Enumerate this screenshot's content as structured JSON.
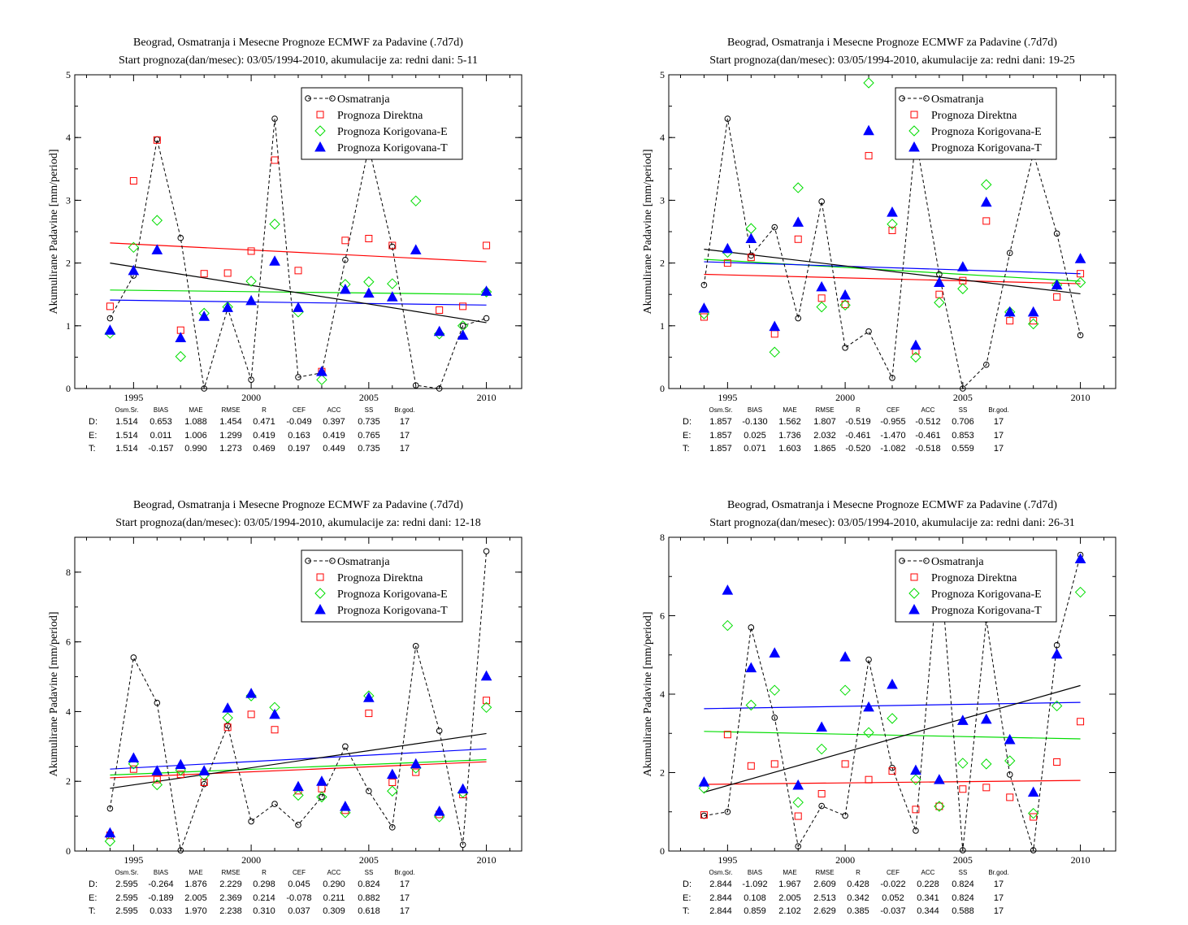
{
  "title_line1": "Beograd, Osmatranja i Mesecne Prognoze ECMWF za Padavine (.7d7d)",
  "ylabel": "Akumulirane Padavine [mm/period]",
  "legend": [
    "Osmatranja",
    "Prognoza Direktna",
    "Prognoza Korigovana-E",
    "Prognoza Korigovana-T"
  ],
  "stats_header": [
    "Osm.Sr.",
    "BIAS",
    "MAE",
    "RMSE",
    "R",
    "CEF",
    "ACC",
    "SS",
    "Br.god."
  ],
  "row_labels": [
    "D:",
    "E:",
    "T:"
  ],
  "colors": {
    "obs": "#000000",
    "direct": "#ff0000",
    "korE": "#00dd00",
    "korT": "#0000ff"
  },
  "chart_data": [
    {
      "type": "scatter",
      "subtitle": "Start prognoza(dan/mesec): 03/05/1994-2010, akumulacije za: redni dani: 5-11",
      "ylim": [
        0,
        5
      ],
      "yticks": [
        0,
        1,
        2,
        3,
        4,
        5
      ],
      "xlim": [
        1992.5,
        2011.5
      ],
      "xticks": [
        1995,
        2000,
        2005,
        2010
      ],
      "x": [
        1994,
        1995,
        1996,
        1997,
        1998,
        1999,
        2000,
        2001,
        2002,
        2003,
        2004,
        2005,
        2006,
        2007,
        2008,
        2009,
        2010
      ],
      "series": [
        {
          "name": "Osmatranja",
          "values": [
            1.12,
            1.8,
            3.97,
            2.4,
            0.0,
            1.28,
            0.14,
            4.3,
            0.18,
            0.25,
            2.05,
            3.85,
            2.26,
            0.05,
            0.0,
            1.0,
            1.12
          ]
        },
        {
          "name": "Prognoza Direktna",
          "values": [
            1.31,
            3.31,
            3.96,
            0.93,
            1.83,
            1.84,
            2.19,
            3.64,
            1.88,
            0.27,
            2.36,
            2.39,
            2.28,
            null,
            1.25,
            1.31,
            2.28
          ]
        },
        {
          "name": "Prognoza Korigovana-E",
          "values": [
            0.88,
            2.25,
            2.68,
            0.51,
            1.2,
            1.3,
            1.71,
            2.62,
            1.22,
            0.14,
            1.66,
            1.7,
            1.67,
            2.99,
            0.87,
            1.0,
            1.54
          ]
        },
        {
          "name": "Prognoza Korigovana-T",
          "values": [
            0.93,
            1.88,
            2.21,
            0.81,
            1.15,
            1.29,
            1.4,
            2.03,
            1.29,
            0.27,
            1.58,
            1.52,
            1.46,
            2.21,
            0.91,
            0.85,
            1.55
          ]
        }
      ],
      "trends": {
        "obs": [
          2.0,
          1.05
        ],
        "direct": [
          2.32,
          2.02
        ],
        "korE": [
          1.57,
          1.5
        ],
        "korT": [
          1.41,
          1.33
        ]
      },
      "stats": [
        [
          "1.514",
          "0.653",
          "1.088",
          "1.454",
          "0.471",
          "-0.049",
          "0.397",
          "0.735",
          "17"
        ],
        [
          "1.514",
          "0.011",
          "1.006",
          "1.299",
          "0.419",
          "0.163",
          "0.419",
          "0.765",
          "17"
        ],
        [
          "1.514",
          "-0.157",
          "0.990",
          "1.273",
          "0.469",
          "0.197",
          "0.449",
          "0.735",
          "17"
        ]
      ]
    },
    {
      "type": "scatter",
      "subtitle": "Start prognoza(dan/mesec): 03/05/1994-2010, akumulacije za: redni dani: 19-25",
      "ylim": [
        0,
        5
      ],
      "yticks": [
        0,
        1,
        2,
        3,
        4,
        5
      ],
      "xlim": [
        1992.5,
        2011.5
      ],
      "xticks": [
        1995,
        2000,
        2005,
        2010
      ],
      "x": [
        1994,
        1995,
        1996,
        1997,
        1998,
        1999,
        2000,
        2001,
        2002,
        2003,
        2004,
        2005,
        2006,
        2007,
        2008,
        2009,
        2010
      ],
      "series": [
        {
          "name": "Osmatranja",
          "values": [
            1.65,
            4.3,
            2.12,
            2.57,
            1.12,
            2.98,
            0.65,
            0.91,
            0.17,
            4.0,
            1.82,
            0.0,
            0.38,
            2.16,
            3.75,
            2.47,
            0.85
          ]
        },
        {
          "name": "Prognoza Direktna",
          "values": [
            1.14,
            2.0,
            2.09,
            0.87,
            2.38,
            1.44,
            1.34,
            3.71,
            2.52,
            0.6,
            1.5,
            1.72,
            2.67,
            1.08,
            1.08,
            1.46,
            1.83
          ]
        },
        {
          "name": "Prognoza Korigovana-E",
          "values": [
            1.19,
            2.17,
            2.55,
            0.58,
            3.2,
            1.3,
            1.33,
            4.87,
            2.62,
            0.5,
            1.37,
            1.59,
            3.25,
            1.22,
            1.03,
            1.65,
            1.69
          ]
        },
        {
          "name": "Prognoza Korigovana-T",
          "values": [
            1.28,
            2.23,
            2.39,
            0.99,
            2.65,
            1.62,
            1.49,
            4.11,
            2.81,
            0.69,
            1.69,
            1.94,
            2.97,
            1.22,
            1.22,
            1.65,
            2.07
          ]
        }
      ],
      "trends": {
        "obs": [
          2.22,
          1.51
        ],
        "direct": [
          1.82,
          1.67
        ],
        "korE": [
          2.06,
          1.71
        ],
        "korT": [
          2.02,
          1.83
        ]
      },
      "stats": [
        [
          "1.857",
          "-0.130",
          "1.562",
          "1.807",
          "-0.519",
          "-0.955",
          "-0.512",
          "0.706",
          "17"
        ],
        [
          "1.857",
          "0.025",
          "1.736",
          "2.032",
          "-0.461",
          "-1.470",
          "-0.461",
          "0.853",
          "17"
        ],
        [
          "1.857",
          "0.071",
          "1.603",
          "1.865",
          "-0.520",
          "-1.082",
          "-0.518",
          "0.559",
          "17"
        ]
      ]
    },
    {
      "type": "scatter",
      "subtitle": "Start prognoza(dan/mesec): 03/05/1994-2010, akumulacije za: redni dani: 12-18",
      "ylim": [
        0,
        9
      ],
      "yticks": [
        0,
        2,
        4,
        6,
        8
      ],
      "xlim": [
        1992.5,
        2011.5
      ],
      "xticks": [
        1995,
        2000,
        2005,
        2010
      ],
      "x": [
        1994,
        1995,
        1996,
        1997,
        1998,
        1999,
        2000,
        2001,
        2002,
        2003,
        2004,
        2005,
        2006,
        2007,
        2008,
        2009,
        2010
      ],
      "series": [
        {
          "name": "Osmatranja",
          "values": [
            1.22,
            5.55,
            4.25,
            0.02,
            1.92,
            3.6,
            0.85,
            1.35,
            0.75,
            1.55,
            3.0,
            1.72,
            0.68,
            5.88,
            3.45,
            0.18,
            8.6
          ]
        },
        {
          "name": "Prognoza Direktna",
          "values": [
            0.45,
            2.35,
            2.05,
            2.2,
            1.97,
            3.55,
            3.92,
            3.48,
            1.73,
            1.79,
            1.17,
            3.95,
            1.97,
            2.26,
            1.05,
            1.62,
            4.32
          ]
        },
        {
          "name": "Prognoza Korigovana-E",
          "values": [
            0.28,
            2.5,
            1.9,
            2.32,
            2.17,
            3.82,
            4.45,
            4.12,
            1.6,
            1.55,
            1.1,
            4.45,
            1.72,
            2.38,
            0.98,
            1.68,
            4.12
          ]
        },
        {
          "name": "Prognoza Korigovana-T",
          "values": [
            0.52,
            2.67,
            2.3,
            2.48,
            2.3,
            4.1,
            4.52,
            3.92,
            1.85,
            2.0,
            1.28,
            4.4,
            2.2,
            2.5,
            1.14,
            1.78,
            5.02
          ]
        }
      ],
      "trends": {
        "obs": [
          1.8,
          3.37
        ],
        "direct": [
          2.1,
          2.56
        ],
        "korE": [
          2.18,
          2.62
        ],
        "korT": [
          2.35,
          2.93
        ]
      },
      "stats": [
        [
          "2.595",
          "-0.264",
          "1.876",
          "2.229",
          "0.298",
          "0.045",
          "0.290",
          "0.824",
          "17"
        ],
        [
          "2.595",
          "-0.189",
          "2.005",
          "2.369",
          "0.214",
          "-0.078",
          "0.211",
          "0.882",
          "17"
        ],
        [
          "2.595",
          "0.033",
          "1.970",
          "2.238",
          "0.310",
          "0.037",
          "0.309",
          "0.618",
          "17"
        ]
      ]
    },
    {
      "type": "scatter",
      "subtitle": "Start prognoza(dan/mesec): 03/05/1994-2010, akumulacije za: redni dani: 26-31",
      "ylim": [
        0,
        8
      ],
      "yticks": [
        0,
        2,
        4,
        6,
        8
      ],
      "xlim": [
        1992.5,
        2011.5
      ],
      "xticks": [
        1995,
        2000,
        2005,
        2010
      ],
      "x": [
        1994,
        1995,
        1996,
        1997,
        1998,
        1999,
        2000,
        2001,
        2002,
        2003,
        2004,
        2005,
        2006,
        2007,
        2008,
        2009,
        2010
      ],
      "series": [
        {
          "name": "Osmatranja",
          "values": [
            0.9,
            1.0,
            5.7,
            3.4,
            0.12,
            1.15,
            0.9,
            4.88,
            2.12,
            0.52,
            7.6,
            0.02,
            5.9,
            1.95,
            0.02,
            5.25,
            7.55
          ]
        },
        {
          "name": "Prognoza Direktna",
          "values": [
            0.92,
            2.97,
            2.17,
            2.22,
            0.89,
            1.46,
            2.22,
            1.82,
            2.04,
            1.06,
            1.14,
            1.58,
            1.62,
            1.37,
            0.87,
            2.27,
            3.3
          ]
        },
        {
          "name": "Prognoza Korigovana-E",
          "values": [
            1.6,
            5.75,
            3.72,
            4.1,
            1.24,
            2.6,
            4.1,
            3.02,
            3.38,
            1.82,
            1.14,
            2.24,
            2.22,
            2.3,
            0.96,
            3.7,
            6.6
          ]
        },
        {
          "name": "Prognoza Korigovana-T",
          "values": [
            1.76,
            6.65,
            4.67,
            5.05,
            1.68,
            3.16,
            4.95,
            3.67,
            4.25,
            2.06,
            1.82,
            3.33,
            3.36,
            2.84,
            1.5,
            5.02,
            7.45
          ]
        }
      ],
      "trends": {
        "obs": [
          1.5,
          4.22
        ],
        "direct": [
          1.7,
          1.8
        ],
        "korE": [
          3.05,
          2.86
        ],
        "korT": [
          3.63,
          3.79
        ]
      },
      "stats": [
        [
          "2.844",
          "-1.092",
          "1.967",
          "2.609",
          "0.428",
          "-0.022",
          "0.228",
          "0.824",
          "17"
        ],
        [
          "2.844",
          "0.108",
          "2.005",
          "2.513",
          "0.342",
          "0.052",
          "0.341",
          "0.824",
          "17"
        ],
        [
          "2.844",
          "0.859",
          "2.102",
          "2.629",
          "0.385",
          "-0.037",
          "0.344",
          "0.588",
          "17"
        ]
      ]
    }
  ]
}
